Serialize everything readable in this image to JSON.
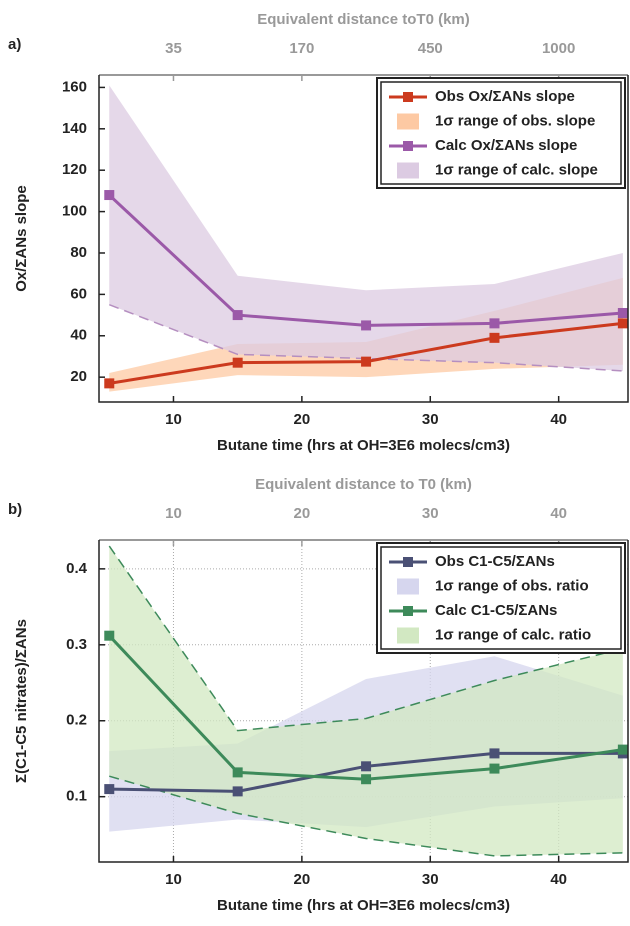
{
  "chart_data": [
    {
      "type": "line",
      "panel_label": "a)",
      "top_xlabel": "Equivalent distance toT0 (km)",
      "top_xticks": [
        {
          "value": 10,
          "label": "35"
        },
        {
          "value": 20,
          "label": "170"
        },
        {
          "value": 30,
          "label": "450"
        },
        {
          "value": 40,
          "label": "1000"
        }
      ],
      "xlabel": "Butane time (hrs at OH=3E6 molecs/cm3)",
      "ylabel": "Ox/ΣANs slope",
      "x": [
        5,
        15,
        25,
        35,
        45
      ],
      "xlim": [
        4.2,
        45.4
      ],
      "xticks": [
        10,
        20,
        30,
        40
      ],
      "ylim": [
        8,
        166
      ],
      "yticks": [
        20,
        40,
        60,
        80,
        100,
        120,
        140,
        160
      ],
      "grid": false,
      "legend": "upper right",
      "series": [
        {
          "name": "Obs Ox/ΣANs slope",
          "kind": "line",
          "color": "#cc3a1e",
          "values": [
            17,
            27,
            27.5,
            39,
            46
          ]
        },
        {
          "name": "1σ range of obs. slope",
          "kind": "band",
          "color": "#fdc9a3",
          "lower": [
            13,
            21,
            20,
            24,
            26
          ],
          "upper": [
            22,
            36,
            37,
            52,
            68
          ],
          "dashed_edges": []
        },
        {
          "name": "Calc Ox/ΣANs slope",
          "kind": "line",
          "color": "#9b59a8",
          "values": [
            108,
            50,
            45,
            46,
            51
          ]
        },
        {
          "name": "1σ range of calc. slope",
          "kind": "band",
          "color": "#dccbe2",
          "edge_color": "#b58fc0",
          "lower": [
            55,
            31,
            29,
            27,
            23
          ],
          "upper": [
            161,
            69,
            62,
            65,
            80
          ],
          "dashed_edges": [
            "lower"
          ]
        }
      ]
    },
    {
      "type": "line",
      "panel_label": "b)",
      "top_xlabel": "Equivalent distance to T0 (km)",
      "top_xticks": [
        10,
        20,
        30,
        40
      ],
      "xlabel": "Butane time (hrs at OH=3E6 molecs/cm3)",
      "ylabel": "Σ(C1-C5 nitrates)/ΣANs",
      "x": [
        5,
        15,
        25,
        35,
        45
      ],
      "xlim": [
        4.2,
        45.4
      ],
      "xticks": [
        10,
        20,
        30,
        40
      ],
      "ylim": [
        0.014,
        0.438
      ],
      "yticks": [
        0.1,
        0.2,
        0.3,
        0.4
      ],
      "grid": true,
      "legend": "upper right",
      "series": [
        {
          "name": "Obs C1-C5/ΣANs",
          "kind": "line",
          "color": "#4a5075",
          "values": [
            0.11,
            0.107,
            0.14,
            0.157,
            0.157
          ]
        },
        {
          "name": "1σ range of obs. ratio",
          "kind": "band",
          "color": "#d6d6ee",
          "lower": [
            0.054,
            0.07,
            0.06,
            0.087,
            0.098
          ],
          "upper": [
            0.16,
            0.17,
            0.255,
            0.285,
            0.233
          ],
          "dashed_edges": []
        },
        {
          "name": "Calc C1-C5/ΣANs",
          "kind": "line",
          "color": "#3d8a5a",
          "values": [
            0.312,
            0.132,
            0.123,
            0.137,
            0.162
          ]
        },
        {
          "name": "1σ range of calc. ratio",
          "kind": "band",
          "color": "#d2e8c2",
          "edge_color": "#3d8a5a",
          "lower": [
            0.127,
            0.078,
            0.045,
            0.022,
            0.026
          ],
          "upper": [
            0.43,
            0.187,
            0.203,
            0.253,
            0.295
          ],
          "dashed_edges": [
            "lower",
            "upper"
          ]
        }
      ]
    }
  ]
}
